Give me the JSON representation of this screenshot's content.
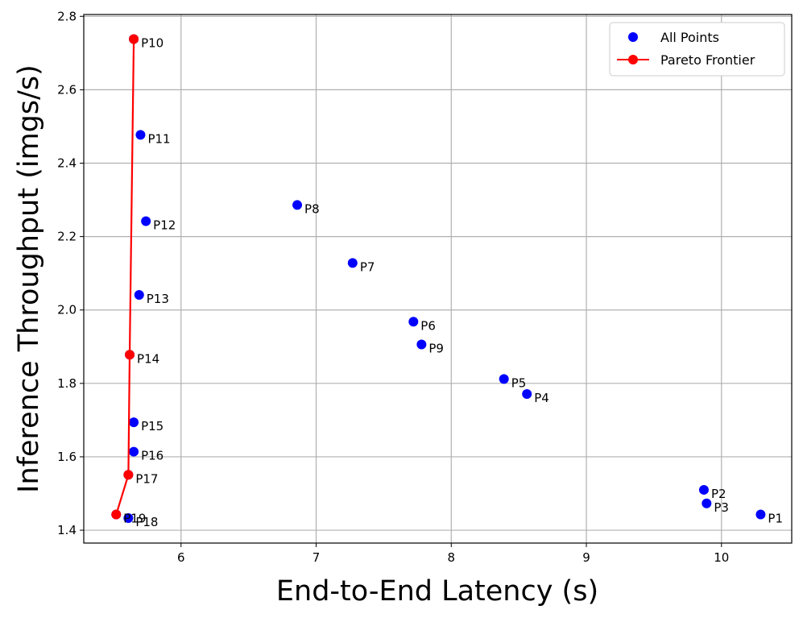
{
  "chart_data": {
    "type": "scatter",
    "title": "",
    "xlabel": "End-to-End Latency (s)",
    "ylabel": "Inference Throughput (imgs/s)",
    "xlim": [
      5.28,
      10.52
    ],
    "ylim": [
      1.365,
      2.805
    ],
    "xticks": [
      6,
      7,
      8,
      9,
      10
    ],
    "yticks": [
      1.4,
      1.6,
      1.8,
      2.0,
      2.2,
      2.4,
      2.6,
      2.8
    ],
    "xtick_labels": [
      "6",
      "7",
      "8",
      "9",
      "10"
    ],
    "ytick_labels": [
      "1.4",
      "1.6",
      "1.8",
      "2.0",
      "2.2",
      "2.4",
      "2.6",
      "2.8"
    ],
    "grid": true,
    "legend_position": "top-right",
    "series": [
      {
        "name": "All Points",
        "kind": "scatter",
        "color": "#0000ff",
        "points": [
          {
            "label": "P1",
            "x": 10.29,
            "y": 1.443
          },
          {
            "label": "P2",
            "x": 9.87,
            "y": 1.51
          },
          {
            "label": "P3",
            "x": 9.89,
            "y": 1.473
          },
          {
            "label": "P4",
            "x": 8.56,
            "y": 1.771
          },
          {
            "label": "P5",
            "x": 8.39,
            "y": 1.812
          },
          {
            "label": "P6",
            "x": 7.72,
            "y": 1.968
          },
          {
            "label": "P7",
            "x": 7.27,
            "y": 2.128
          },
          {
            "label": "P8",
            "x": 6.86,
            "y": 2.286
          },
          {
            "label": "P9",
            "x": 7.78,
            "y": 1.906
          },
          {
            "label": "P10",
            "x": 5.65,
            "y": 2.738
          },
          {
            "label": "P11",
            "x": 5.7,
            "y": 2.477
          },
          {
            "label": "P12",
            "x": 5.74,
            "y": 2.242
          },
          {
            "label": "P13",
            "x": 5.69,
            "y": 2.041
          },
          {
            "label": "P14",
            "x": 5.62,
            "y": 1.878
          },
          {
            "label": "P15",
            "x": 5.65,
            "y": 1.694
          },
          {
            "label": "P16",
            "x": 5.65,
            "y": 1.614
          },
          {
            "label": "P17",
            "x": 5.61,
            "y": 1.551
          },
          {
            "label": "P18",
            "x": 5.61,
            "y": 1.433
          },
          {
            "label": "P19",
            "x": 5.52,
            "y": 1.443
          }
        ]
      },
      {
        "name": "Pareto Frontier",
        "kind": "line",
        "color": "#ff0000",
        "points": [
          {
            "label": "P19",
            "x": 5.52,
            "y": 1.443
          },
          {
            "label": "P17",
            "x": 5.61,
            "y": 1.551
          },
          {
            "label": "P14",
            "x": 5.62,
            "y": 1.878
          },
          {
            "label": "P10",
            "x": 5.65,
            "y": 2.738
          }
        ]
      }
    ]
  }
}
